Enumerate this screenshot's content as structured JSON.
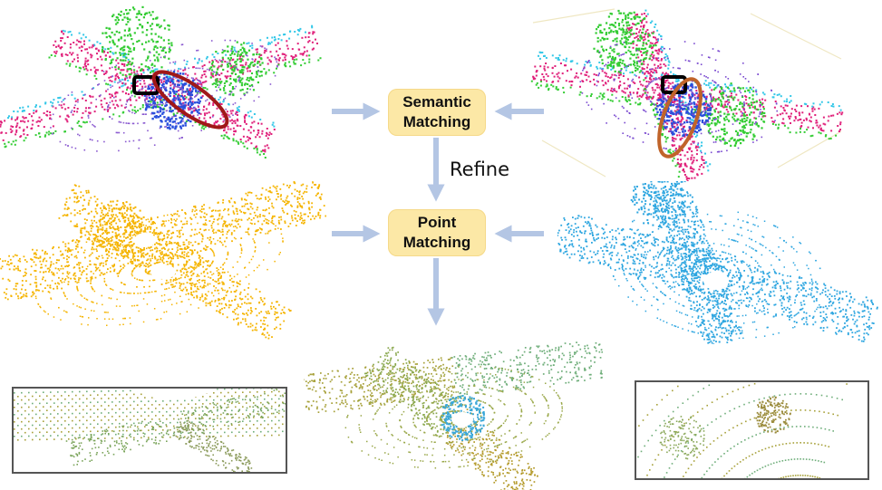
{
  "diagram": {
    "semantic_box": {
      "line1": "Semantic",
      "line2": "Matching"
    },
    "point_box": {
      "line1": "Point",
      "line2": "Matching"
    },
    "refine_label": "Refine"
  },
  "colors": {
    "box_fill": "#fce8a6",
    "arrow": "#b4c6e4",
    "source_points": "#f5b400",
    "target_points": "#2ea6e0",
    "semantic_vegetation": "#33cc33",
    "semantic_road": "#e0207a",
    "semantic_car": "#2a4fdc",
    "semantic_sidewalk": "#35c8e8",
    "marker_box": "#000000",
    "marker_ellipse_left": "#a01818",
    "marker_ellipse_right": "#c0642a",
    "registered_mix": "#9aa84a"
  }
}
